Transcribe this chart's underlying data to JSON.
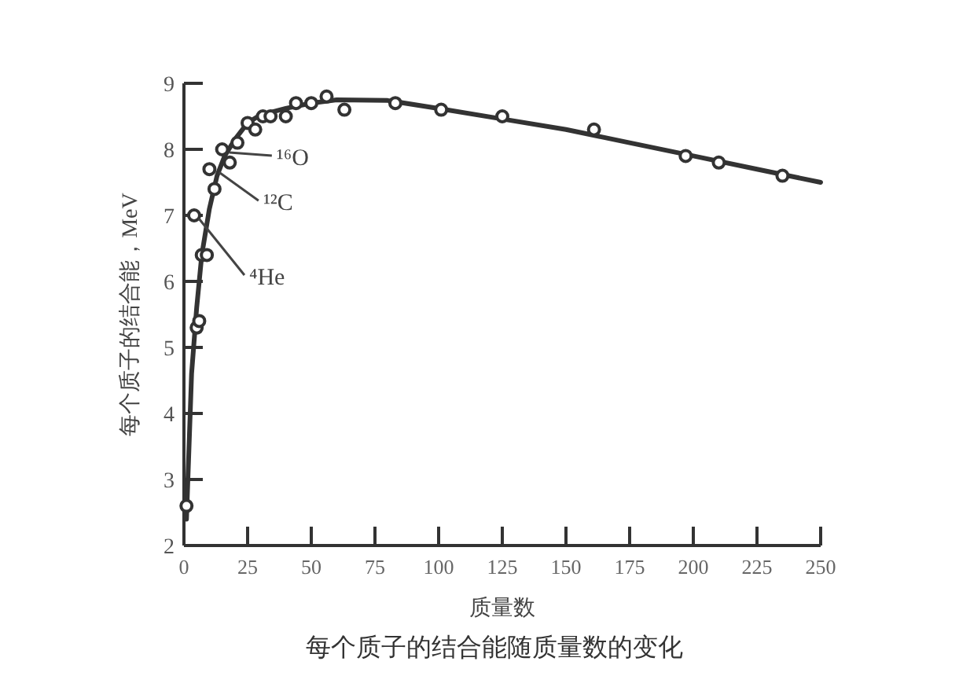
{
  "chart_data": {
    "type": "line",
    "title": "每个质子的结合能随质量数的变化",
    "xlabel": "质量数",
    "ylabel": "每个质子的结合能，MeV",
    "xlim": [
      0,
      250
    ],
    "xticks": [
      0,
      25,
      50,
      75,
      100,
      125,
      150,
      175,
      200,
      225,
      250
    ],
    "ylim": [
      2,
      9
    ],
    "yticks": [
      2,
      3,
      4,
      5,
      6,
      7,
      8,
      9
    ],
    "grid": false,
    "line_style": "solid",
    "series": [
      {
        "color": "#333333",
        "marker": "none",
        "x": [
          1,
          3,
          5,
          7,
          10,
          13,
          16,
          20,
          25,
          30,
          40,
          50,
          60,
          80,
          100,
          125,
          150,
          175,
          200,
          225,
          250
        ],
        "values": [
          2.4,
          4.6,
          5.6,
          6.4,
          7.1,
          7.6,
          7.9,
          8.15,
          8.4,
          8.52,
          8.62,
          8.7,
          8.75,
          8.74,
          8.62,
          8.46,
          8.3,
          8.1,
          7.9,
          7.7,
          7.5
        ]
      },
      {
        "type": "scatter",
        "color": "#333333",
        "marker": "circle",
        "x": [
          1,
          4,
          5,
          6,
          7,
          9,
          10,
          12,
          15,
          18,
          21,
          25,
          28,
          31,
          34,
          40,
          44,
          50,
          56,
          63,
          83,
          101,
          125,
          161,
          197,
          210,
          235
        ],
        "values": [
          2.6,
          7.0,
          5.3,
          5.4,
          6.4,
          6.4,
          7.7,
          7.4,
          8.0,
          7.8,
          8.1,
          8.4,
          8.3,
          8.5,
          8.5,
          8.5,
          8.7,
          8.7,
          8.8,
          8.6,
          8.7,
          8.6,
          8.5,
          8.3,
          7.9,
          7.8,
          7.6
        ]
      }
    ],
    "annotations": [
      {
        "text": "¹⁶O",
        "x": 16,
        "y": 8.0
      },
      {
        "text": "¹²C",
        "x": 12,
        "y": 7.7
      },
      {
        "text": "⁴He",
        "x": 4,
        "y": 7.0
      }
    ]
  }
}
